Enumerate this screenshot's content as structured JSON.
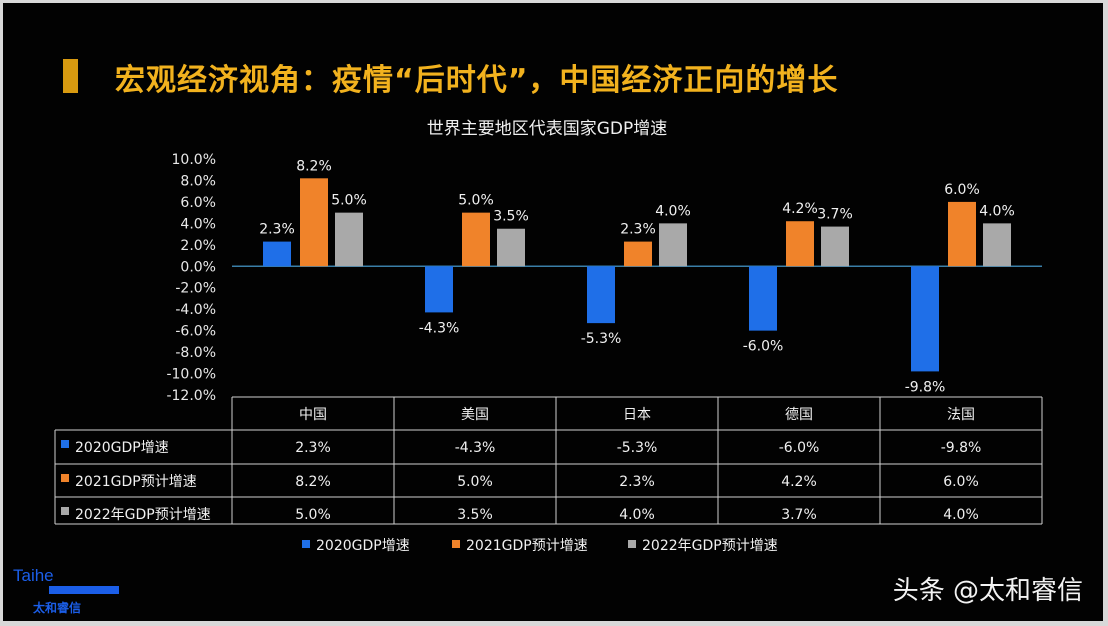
{
  "slide": {
    "title": "宏观经济视角：疫情“后时代”，中国经济正向的增长",
    "accent_color": "#f2b21e",
    "logo": {
      "en": "Taihe",
      "cn": "太和睿信"
    },
    "watermark": "头条 @太和睿信"
  },
  "chart_data": {
    "type": "bar",
    "title": "世界主要地区代表国家GDP增速",
    "categories": [
      "中国",
      "美国",
      "日本",
      "德国",
      "法国"
    ],
    "series": [
      {
        "name": "2020GDP增速",
        "color": "#1f6fe8",
        "values": [
          2.3,
          -4.3,
          -5.3,
          -6.0,
          -9.8
        ],
        "labels": [
          "2.3%",
          "-4.3%",
          "-5.3%",
          "-6.0%",
          "-9.8%"
        ]
      },
      {
        "name": "2021GDP预计增速",
        "color": "#f0832a",
        "values": [
          8.2,
          5.0,
          2.3,
          4.2,
          6.0
        ],
        "labels": [
          "8.2%",
          "5.0%",
          "2.3%",
          "4.2%",
          "6.0%"
        ]
      },
      {
        "name": "2022年GDP预计增速",
        "color": "#a9a9a9",
        "values": [
          5.0,
          3.5,
          4.0,
          3.7,
          4.0
        ],
        "labels": [
          "5.0%",
          "3.5%",
          "4.0%",
          "3.7%",
          "4.0%"
        ]
      }
    ],
    "ylim": [
      -12,
      10
    ],
    "yticks": [
      "10.0%",
      "8.0%",
      "6.0%",
      "4.0%",
      "2.0%",
      "0.0%",
      "-2.0%",
      "-4.0%",
      "-6.0%",
      "-8.0%",
      "-10.0%",
      "-12.0%"
    ],
    "grid": false,
    "legend": "bottom",
    "data_table": true
  }
}
